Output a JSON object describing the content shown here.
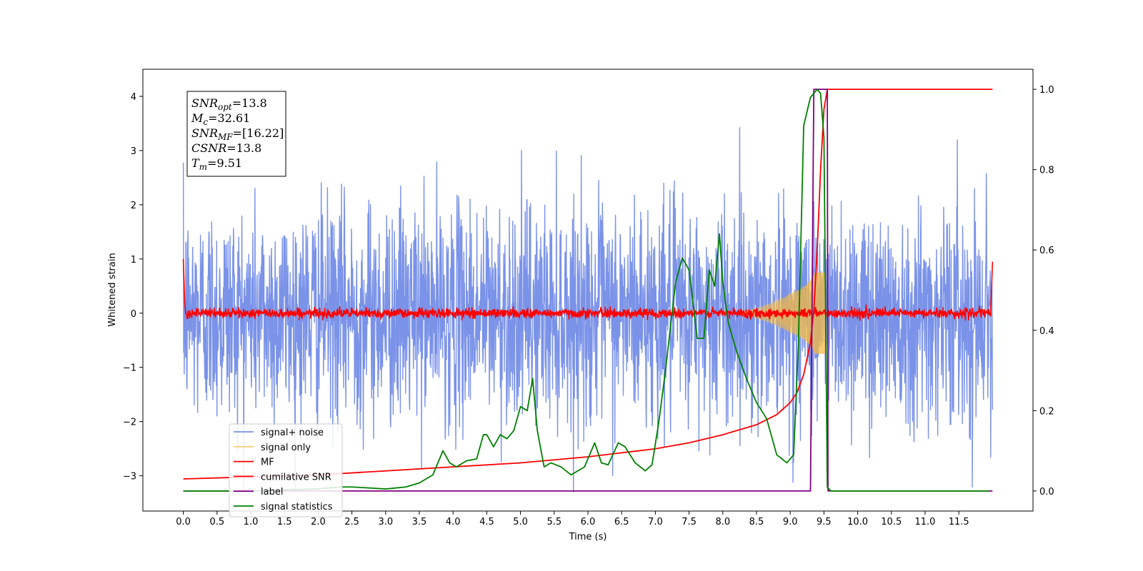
{
  "chart_data": {
    "type": "line",
    "xlabel": "Time (s)",
    "ylabel": "Whitened strain",
    "xlim": [
      -0.6,
      12.6
    ],
    "ylim": [
      -3.65,
      4.5
    ],
    "y2lim": [
      -0.05,
      1.05
    ],
    "x_ticks": [
      "0.0",
      "0.5",
      "1.0",
      "1.5",
      "2.0",
      "2.5",
      "3.0",
      "3.5",
      "4.0",
      "4.5",
      "5.0",
      "5.5",
      "6.0",
      "6.5",
      "7.0",
      "7.5",
      "8.0",
      "8.5",
      "9.0",
      "9.5",
      "10.0",
      "10.5",
      "11.0",
      "11.5"
    ],
    "y_ticks": [
      "4",
      "3",
      "2",
      "1",
      "0",
      "−1",
      "−2",
      "−3"
    ],
    "y2_ticks": [
      "1.0",
      "0.8",
      "0.6",
      "0.4",
      "0.2",
      "0.0"
    ],
    "legend_position": "lower-left",
    "annotation": [
      {
        "name": "SNR",
        "sub": "opt",
        "value": "=13.8"
      },
      {
        "name": "M",
        "sub": "c",
        "value": "=32.61"
      },
      {
        "name": "SNR",
        "sub": "MF",
        "value": "=[16.22]"
      },
      {
        "name": "CSNR",
        "sub": "",
        "value": "=13.8"
      },
      {
        "name": "T",
        "sub": "m",
        "value": "=9.51"
      }
    ],
    "series": [
      {
        "name": "signal+ noise",
        "color": "#6b86e6",
        "axis": "left",
        "noise_amplitude": 1.0,
        "x_range": [
          0.0,
          12.0
        ]
      },
      {
        "name": "signal only",
        "color": "#f5b942",
        "axis": "left",
        "chirp_peak_time": 9.5,
        "chirp_peak_amplitude": 0.5
      },
      {
        "name": "MF",
        "color": "#ff0000",
        "axis": "left",
        "amplitude": 0.08
      },
      {
        "name": "cumilative SNR",
        "color": "#ff0000",
        "axis": "right",
        "x": [
          0.0,
          1,
          2,
          3,
          4,
          5,
          6,
          6.5,
          7,
          7.5,
          8,
          8.5,
          8.8,
          9.0,
          9.1,
          9.2,
          9.3,
          9.35,
          9.4,
          9.45,
          9.5,
          9.55,
          12.0
        ],
        "y": [
          0.03,
          0.035,
          0.04,
          0.05,
          0.06,
          0.07,
          0.085,
          0.095,
          0.105,
          0.12,
          0.14,
          0.165,
          0.19,
          0.22,
          0.245,
          0.29,
          0.37,
          0.45,
          0.6,
          0.8,
          0.95,
          1.0,
          1.0
        ]
      },
      {
        "name": "label",
        "color": "#800080",
        "axis": "right",
        "x": [
          0.0,
          9.3,
          9.35,
          9.55,
          9.56,
          12.0
        ],
        "y": [
          0.0,
          0.0,
          1.0,
          1.0,
          0.0,
          0.0
        ]
      },
      {
        "name": "signal statistics",
        "color": "#008000",
        "axis": "right",
        "x": [
          0.0,
          0.5,
          1.0,
          1.5,
          2.0,
          2.3,
          2.5,
          3.0,
          3.3,
          3.5,
          3.7,
          3.85,
          3.95,
          4.05,
          4.2,
          4.35,
          4.45,
          4.5,
          4.6,
          4.7,
          4.8,
          4.9,
          5.0,
          5.1,
          5.18,
          5.25,
          5.35,
          5.45,
          5.6,
          5.75,
          5.95,
          6.1,
          6.2,
          6.3,
          6.45,
          6.55,
          6.7,
          6.85,
          6.95,
          7.05,
          7.15,
          7.3,
          7.4,
          7.5,
          7.62,
          7.72,
          7.8,
          7.88,
          7.95,
          8.0,
          8.08,
          8.2,
          8.35,
          8.5,
          8.65,
          8.8,
          8.95,
          9.05,
          9.12,
          9.2,
          9.3,
          9.4,
          9.45,
          9.5,
          9.55,
          9.6,
          10.0,
          11.0,
          11.95
        ],
        "y": [
          0.0,
          0.0,
          0.0,
          0.003,
          0.005,
          0.01,
          0.01,
          0.005,
          0.01,
          0.02,
          0.04,
          0.1,
          0.07,
          0.06,
          0.075,
          0.08,
          0.14,
          0.14,
          0.11,
          0.14,
          0.13,
          0.15,
          0.21,
          0.2,
          0.28,
          0.15,
          0.06,
          0.07,
          0.06,
          0.04,
          0.06,
          0.12,
          0.07,
          0.065,
          0.12,
          0.11,
          0.07,
          0.05,
          0.065,
          0.17,
          0.3,
          0.52,
          0.58,
          0.55,
          0.38,
          0.38,
          0.55,
          0.51,
          0.64,
          0.52,
          0.42,
          0.35,
          0.28,
          0.22,
          0.18,
          0.09,
          0.07,
          0.09,
          0.36,
          0.91,
          0.98,
          1.0,
          0.99,
          0.88,
          0.01,
          0.0,
          0.0,
          0.0,
          0.0
        ]
      }
    ]
  }
}
